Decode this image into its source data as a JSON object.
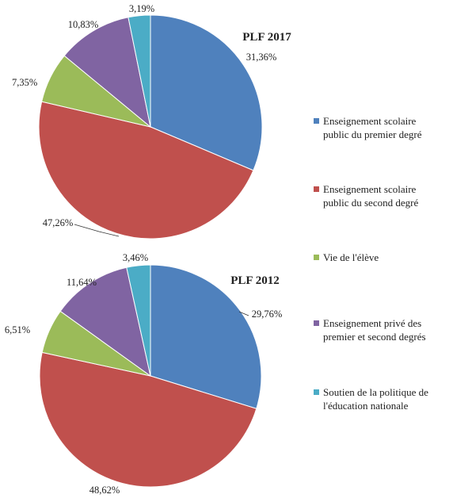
{
  "colors": {
    "premier": "#4F81BD",
    "second": "#C0504D",
    "vie": "#9BBB59",
    "prive": "#8064A2",
    "soutien": "#4BACC6"
  },
  "legend": [
    {
      "lines": [
        "Enseignement scolaire",
        "public du premier degré"
      ],
      "color": "#4F81BD"
    },
    {
      "lines": [
        "Enseignement scolaire",
        "public du second degré"
      ],
      "color": "#C0504D"
    },
    {
      "lines": [
        "Vie de l'élève"
      ],
      "color": "#9BBB59"
    },
    {
      "lines": [
        "Enseignement privé des",
        "premier et second degrés"
      ],
      "color": "#8064A2"
    },
    {
      "lines": [
        "Soutien de la politique de",
        "l'éducation nationale"
      ],
      "color": "#4BACC6"
    }
  ],
  "chart_data": [
    {
      "type": "pie",
      "title": "PLF 2017",
      "categories": [
        "Enseignement scolaire public du premier degré",
        "Enseignement scolaire public du second degré",
        "Vie de l'élève",
        "Enseignement privé des premier et second degrés",
        "Soutien de la politique de l'éducation nationale"
      ],
      "values": [
        31.36,
        47.26,
        7.35,
        10.83,
        3.19
      ],
      "labels": [
        "31,36%",
        "47,26%",
        "7,35%",
        "10,83%",
        "3,19%"
      ],
      "legend": "right"
    },
    {
      "type": "pie",
      "title": "PLF 2012",
      "categories": [
        "Enseignement scolaire public du premier degré",
        "Enseignement scolaire public du second degré",
        "Vie de l'élève",
        "Enseignement privé des premier et second degrés",
        "Soutien de la politique de l'éducation nationale"
      ],
      "values": [
        29.76,
        48.62,
        6.51,
        11.64,
        3.46
      ],
      "labels": [
        "29,76%",
        "48,62%",
        "6,51%",
        "11,64%",
        "3,46%"
      ],
      "legend": "right"
    }
  ]
}
